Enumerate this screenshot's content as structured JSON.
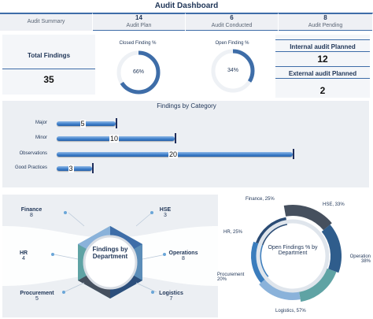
{
  "header": {
    "title": "Audit Dashboard",
    "cells": [
      {
        "label": "Audit Summary",
        "value": ""
      },
      {
        "label": "Audit Plan",
        "value": "14"
      },
      {
        "label": "Audit Conducted",
        "value": "6"
      },
      {
        "label": "Audit Pending",
        "value": "8"
      }
    ]
  },
  "kpis": {
    "total_findings_label": "Total Findings",
    "total_findings_value": "35",
    "closed_label": "Closed Finding %",
    "closed_value": "66%",
    "closed_fraction": 0.66,
    "open_label": "Open Finding %",
    "open_value": "34%",
    "open_fraction": 0.34,
    "internal_label": "Internal audit Planned",
    "internal_value": "12",
    "external_label": "External audit Planned",
    "external_value": "2"
  },
  "category": {
    "title": "Findings by Category"
  },
  "chart_data": {
    "type": "bar",
    "title": "Findings by Category",
    "categories": [
      "Major",
      "Minor",
      "Observations",
      "Good Practices"
    ],
    "values": [
      5,
      10,
      20,
      3
    ],
    "labels": [
      "5",
      "10",
      "20",
      "3"
    ]
  },
  "department": {
    "center_label": "Findings by Department",
    "items": [
      {
        "name": "Finance",
        "count": "8"
      },
      {
        "name": "HSE",
        "count": "3"
      },
      {
        "name": "HR",
        "count": "4"
      },
      {
        "name": "Operations",
        "count": "8"
      },
      {
        "name": "Procurement",
        "count": "5"
      },
      {
        "name": "Logistics",
        "count": "7"
      }
    ]
  },
  "open_by_department": {
    "center_label": "Open Findings % by Department",
    "segments": [
      {
        "label": "Finance, 25%",
        "value": 25,
        "color": "#46505e"
      },
      {
        "label": "HSE, 33%",
        "value": 33,
        "color": "#2f5d8c"
      },
      {
        "label": "Operation 38%",
        "value": 38,
        "color": "#5fa3a4"
      },
      {
        "label": "Logistics, 57%",
        "value": 57,
        "color": "#8ab2da"
      },
      {
        "label": "Procurement 20%",
        "value": 20,
        "color": "#3b7dbd"
      },
      {
        "label": "HR, 25%",
        "value": 25,
        "color": "#2a4b74"
      }
    ]
  },
  "colors": {
    "accent": "#3e6da8",
    "dark": "#1f3557",
    "panel": "#eceff3"
  }
}
